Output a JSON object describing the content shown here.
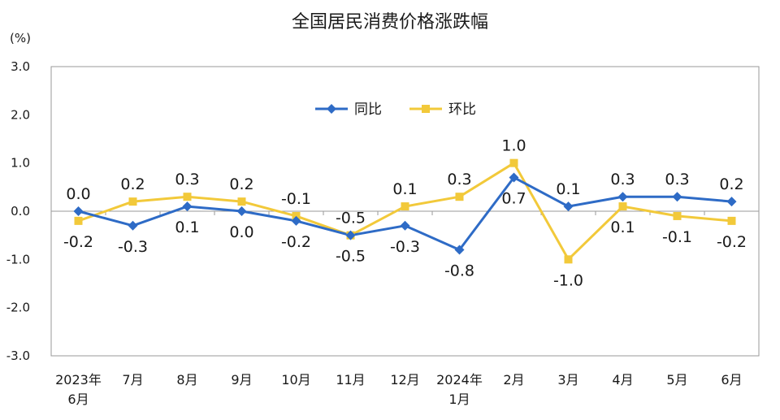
{
  "chart_data": {
    "type": "line",
    "title": "全国居民消费价格涨跌幅",
    "unit_label": "(%)",
    "ylim": [
      -3.0,
      3.0
    ],
    "yticks": [
      "3.0",
      "2.0",
      "1.0",
      "0.0",
      "-1.0",
      "-2.0",
      "-3.0"
    ],
    "categories": [
      [
        "2023年",
        "6月"
      ],
      [
        "7月"
      ],
      [
        "8月"
      ],
      [
        "9月"
      ],
      [
        "10月"
      ],
      [
        "11月"
      ],
      [
        "12月"
      ],
      [
        "2024年",
        "1月"
      ],
      [
        "2月"
      ],
      [
        "3月"
      ],
      [
        "4月"
      ],
      [
        "5月"
      ],
      [
        "6月"
      ]
    ],
    "series": [
      {
        "name": "同比",
        "color": "#2e6bc6",
        "marker": "diamond",
        "values": [
          0.0,
          -0.3,
          0.1,
          0.0,
          -0.2,
          -0.5,
          -0.3,
          -0.8,
          0.7,
          0.1,
          0.3,
          0.3,
          0.2
        ],
        "labels": [
          "0.0",
          "-0.3",
          "0.1",
          "0.0",
          "-0.2",
          "-0.5",
          "-0.3",
          "-0.8",
          "0.7",
          "0.1",
          "0.3",
          "0.3",
          "0.2"
        ]
      },
      {
        "name": "环比",
        "color": "#f2c93a",
        "marker": "square",
        "values": [
          -0.2,
          0.2,
          0.3,
          0.2,
          -0.1,
          -0.5,
          0.1,
          0.3,
          1.0,
          -1.0,
          0.1,
          -0.1,
          -0.2
        ],
        "labels": [
          "-0.2",
          "0.2",
          "0.3",
          "0.2",
          "-0.1",
          "-0.5",
          "0.1",
          "0.3",
          "1.0",
          "-1.0",
          "0.1",
          "-0.1",
          "-0.2"
        ]
      }
    ],
    "legend_position": "top-center",
    "grid": false
  }
}
